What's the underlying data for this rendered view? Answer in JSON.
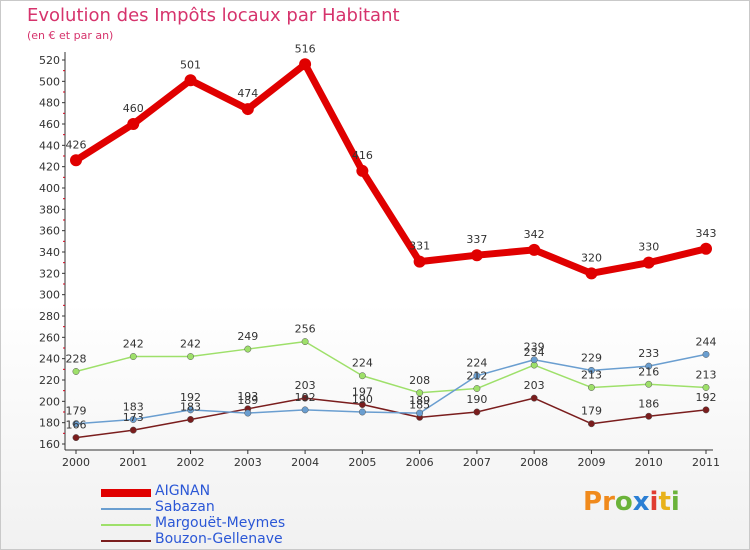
{
  "title": "Evolution des Impôts locaux par Habitant",
  "subtitle": "(en € et par an)",
  "logo": {
    "text": "Proxiti",
    "colors": [
      "#f08a1c",
      "#f08a1c",
      "#6bb33a",
      "#2b7fd4",
      "#e03c31",
      "#e8b21b",
      "#6bb33a"
    ]
  },
  "chart_data": {
    "type": "line",
    "x": [
      "2000",
      "2001",
      "2002",
      "2003",
      "2004",
      "2005",
      "2006",
      "2007",
      "2008",
      "2009",
      "2010",
      "2011"
    ],
    "ylim": [
      160,
      520
    ],
    "yticks": [
      160,
      180,
      200,
      220,
      240,
      260,
      280,
      300,
      320,
      340,
      360,
      380,
      400,
      420,
      440,
      460,
      480,
      500,
      520
    ],
    "grid": false,
    "legend_position": "bottom-left",
    "series": [
      {
        "name": "AIGNAN",
        "color": "#e00000",
        "values": [
          426,
          460,
          501,
          474,
          516,
          416,
          331,
          337,
          342,
          320,
          330,
          343
        ]
      },
      {
        "name": "Sabazan",
        "color": "#6a9ed0",
        "values": [
          179,
          183,
          192,
          189,
          192,
          190,
          189,
          224,
          239,
          229,
          233,
          244
        ]
      },
      {
        "name": "Margouët-Meymes",
        "color": "#9ee06a",
        "values": [
          228,
          242,
          242,
          249,
          256,
          224,
          208,
          212,
          234,
          213,
          216,
          213
        ]
      },
      {
        "name": "Bouzon-Gellenave",
        "color": "#7a1d1d",
        "values": [
          166,
          173,
          183,
          193,
          203,
          197,
          185,
          190,
          203,
          179,
          186,
          192
        ]
      }
    ]
  }
}
